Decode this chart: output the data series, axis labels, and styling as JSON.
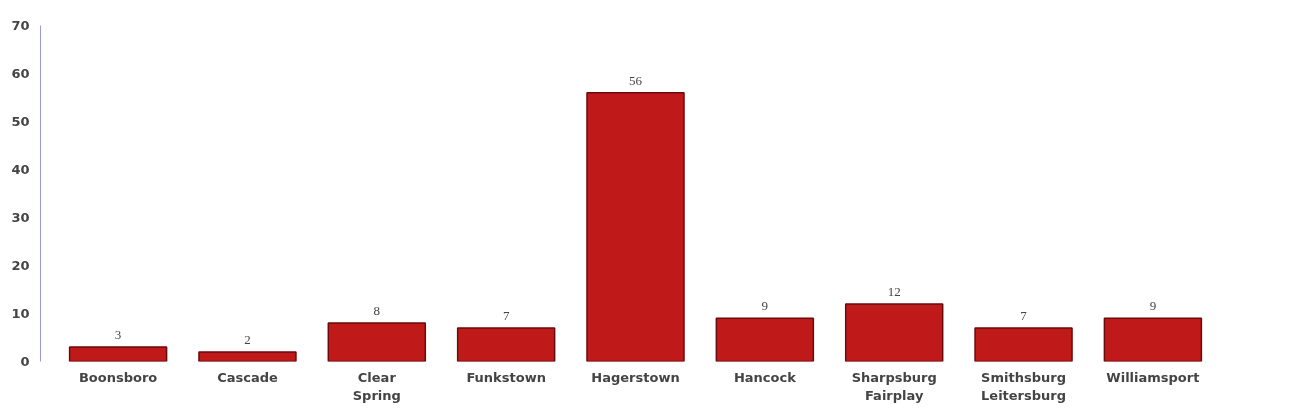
{
  "chart_data": {
    "type": "bar",
    "categories": [
      "Boonsboro",
      "Cascade",
      "Clear Spring",
      "Funkstown",
      "Hagerstown",
      "Hancock",
      "Sharpsburg Fairplay",
      "Smithsburg Leitersburg",
      "Williamsport"
    ],
    "values": [
      3,
      2,
      8,
      7,
      56,
      9,
      12,
      7,
      9
    ],
    "color": "#c0191a",
    "ylim": [
      0,
      70
    ],
    "yticks": [
      0,
      10,
      20,
      30,
      40,
      50,
      60,
      70
    ],
    "data_labels": true
  }
}
